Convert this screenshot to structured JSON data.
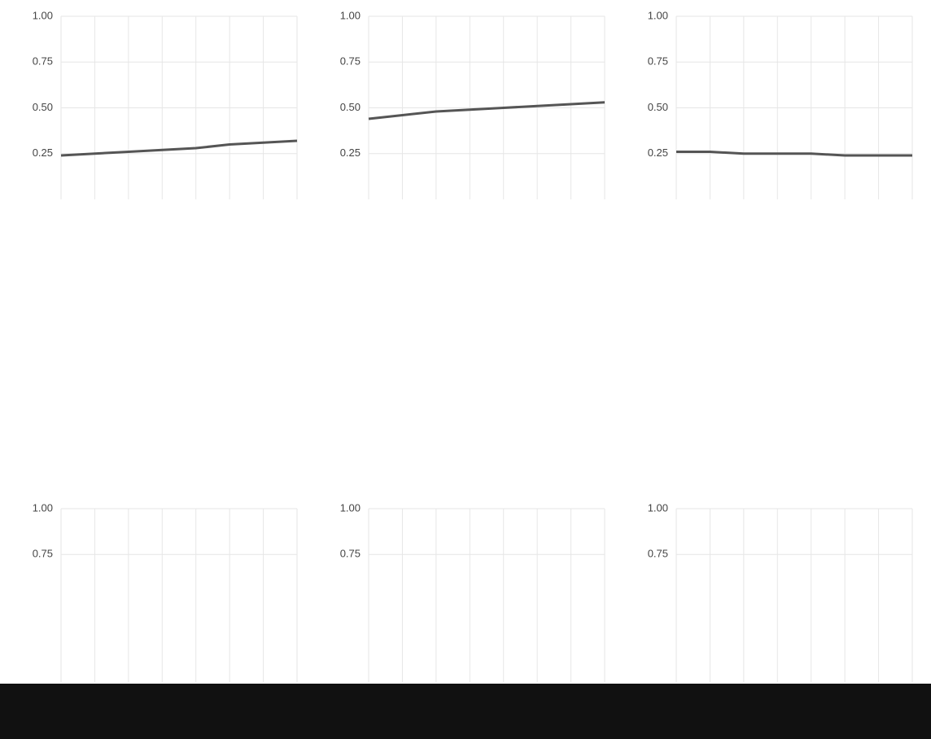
{
  "chart_data": [
    {
      "type": "line",
      "categories": [
        null,
        null,
        null,
        null,
        null,
        null,
        null,
        null
      ],
      "ylim": [
        0,
        1
      ],
      "yticks": [
        {
          "value": 0.25,
          "label": "0.25"
        },
        {
          "value": 0.5,
          "label": "0.50"
        },
        {
          "value": 0.75,
          "label": "0.75"
        },
        {
          "value": 1,
          "label": "1.00"
        }
      ],
      "grid": true,
      "series": [
        {
          "color": "#555555",
          "values": [
            0.24,
            0.25,
            0.26,
            0.27,
            0.28,
            0.3,
            0.31,
            0.32
          ]
        }
      ]
    },
    {
      "type": "line",
      "categories": [
        null,
        null,
        null,
        null,
        null,
        null,
        null,
        null
      ],
      "ylim": [
        0,
        1
      ],
      "yticks": [
        {
          "value": 0.25,
          "label": "0.25"
        },
        {
          "value": 0.5,
          "label": "0.50"
        },
        {
          "value": 0.75,
          "label": "0.75"
        },
        {
          "value": 1,
          "label": "1.00"
        }
      ],
      "grid": true,
      "series": [
        {
          "color": "#555555",
          "values": [
            0.44,
            0.46,
            0.48,
            0.49,
            0.5,
            0.51,
            0.52,
            0.53
          ]
        }
      ]
    },
    {
      "type": "line",
      "categories": [
        null,
        null,
        null,
        null,
        null,
        null,
        null,
        null
      ],
      "ylim": [
        0,
        1
      ],
      "yticks": [
        {
          "value": 0.25,
          "label": "0.25"
        },
        {
          "value": 0.5,
          "label": "0.50"
        },
        {
          "value": 0.75,
          "label": "0.75"
        },
        {
          "value": 1,
          "label": "1.00"
        }
      ],
      "grid": true,
      "series": [
        {
          "color": "#555555",
          "values": [
            0.26,
            0.26,
            0.25,
            0.25,
            0.25,
            0.24,
            0.24,
            0.24
          ]
        }
      ]
    },
    {
      "type": "line",
      "categories": [
        null,
        null,
        null,
        null,
        null,
        null,
        null,
        null
      ],
      "ylim": [
        0,
        1
      ],
      "yticks": [
        {
          "value": 0.75,
          "label": "0.75"
        },
        {
          "value": 1,
          "label": "1.00"
        }
      ],
      "grid": true,
      "series": []
    },
    {
      "type": "line",
      "categories": [
        null,
        null,
        null,
        null,
        null,
        null,
        null,
        null
      ],
      "ylim": [
        0,
        1
      ],
      "yticks": [
        {
          "value": 0.75,
          "label": "0.75"
        },
        {
          "value": 1,
          "label": "1.00"
        }
      ],
      "grid": true,
      "series": []
    },
    {
      "type": "line",
      "categories": [
        null,
        null,
        null,
        null,
        null,
        null,
        null,
        null
      ],
      "ylim": [
        0,
        1
      ],
      "yticks": [
        {
          "value": 0.75,
          "label": "0.75"
        },
        {
          "value": 1,
          "label": "1.00"
        }
      ],
      "grid": true,
      "series": []
    }
  ]
}
